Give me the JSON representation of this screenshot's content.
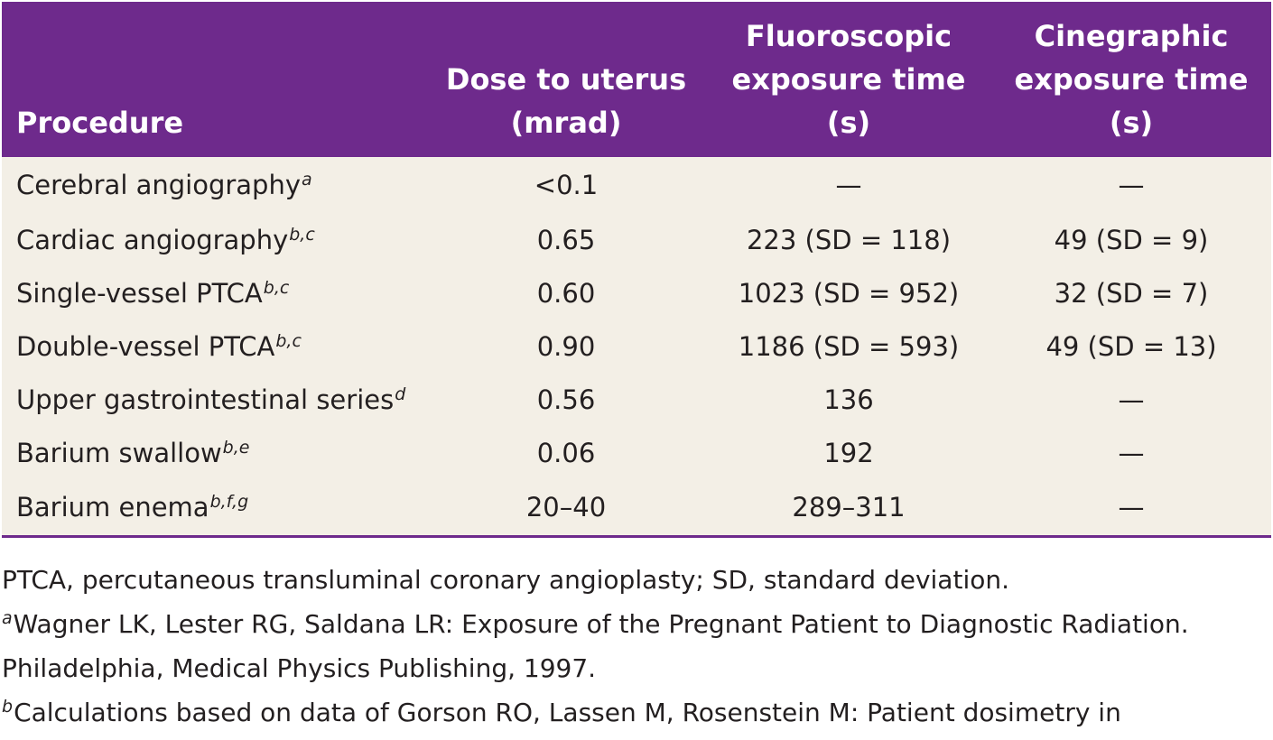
{
  "table": {
    "headers": {
      "procedure": "Procedure",
      "dose": [
        "Dose to uterus",
        "(mrad)"
      ],
      "fluoro": [
        "Fluoroscopic",
        "exposure time",
        "(s)"
      ],
      "cine": [
        "Cinegraphic",
        "exposure time",
        "(s)"
      ]
    },
    "rows": [
      {
        "procedure": "Cerebral angiography",
        "sup": "a",
        "dose": "<0.1",
        "fluoro": "—",
        "cine": "—"
      },
      {
        "procedure": "Cardiac angiography",
        "sup": "b,c",
        "dose": "0.65",
        "fluoro": "223 (SD = 118)",
        "cine": "49 (SD = 9)"
      },
      {
        "procedure": "Single-vessel PTCA",
        "sup": "b,c",
        "dose": "0.60",
        "fluoro": "1023 (SD = 952)",
        "cine": "32 (SD = 7)"
      },
      {
        "procedure": "Double-vessel PTCA",
        "sup": "b,c",
        "dose": "0.90",
        "fluoro": "1186 (SD = 593)",
        "cine": "49 (SD = 13)"
      },
      {
        "procedure": "Upper gastrointestinal series",
        "sup": "d",
        "dose": "0.56",
        "fluoro": "136",
        "cine": "—"
      },
      {
        "procedure": "Barium swallow",
        "sup": "b,e",
        "dose": "0.06",
        "fluoro": "192",
        "cine": "—"
      },
      {
        "procedure": "Barium enema",
        "sup": "b,f,g",
        "dose": "20–40",
        "fluoro": "289–311",
        "cine": "—"
      }
    ]
  },
  "notes": {
    "abbrev": "PTCA, percutaneous transluminal coronary angioplasty; SD, standard deviation.",
    "a_mark": "a",
    "a_text": "Wagner LK, Lester RG, Saldana LR: Exposure of the Pregnant Patient to Diagnostic Radiation.",
    "a_cont": "Philadelphia, Medical Physics Publishing, 1997.",
    "b_mark": "b",
    "b_text": "Calculations based on data of Gorson RO, Lassen M, Rosenstein M: Patient dosimetry in"
  },
  "colors": {
    "header_bg": "#6e2a8c",
    "body_bg": "#f3efe6",
    "text": "#231f20"
  }
}
